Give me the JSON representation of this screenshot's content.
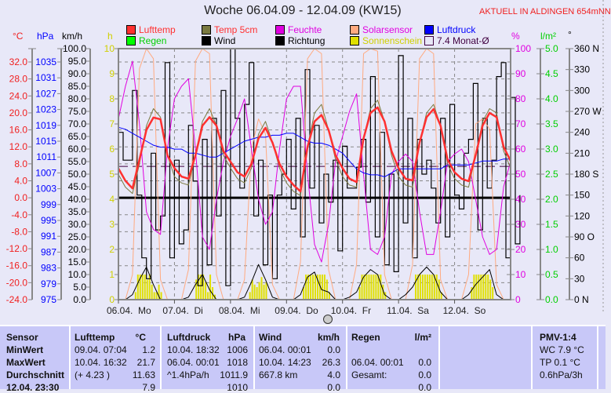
{
  "header": {
    "title": "Woche 06.04.09 - 12.04.09 (KW15)",
    "aktuell": "AKTUELL IN ALDINGEN 654mNN"
  },
  "legend": [
    {
      "label": "Lufttemp",
      "color": "#ff3030",
      "text_color": "#ff3030"
    },
    {
      "label": "Temp 5cm",
      "color": "#7a7a40",
      "text_color": "#ff3030"
    },
    {
      "label": "Feuchte",
      "color": "#e000e0",
      "text_color": "#e000e0"
    },
    {
      "label": "Solarsensor",
      "color": "#ffaa80",
      "text_color": "#e000e0"
    },
    {
      "label": "Luftdruck",
      "color": "#0000ff",
      "text_color": "#0000ff"
    },
    {
      "label": "Regen",
      "color": "#00ff00",
      "text_color": "#00d000"
    },
    {
      "label": "Wind",
      "color": "#000000",
      "text_color": "#000000"
    },
    {
      "label": "Richtung",
      "color": "#000000",
      "text_color": "#000000"
    },
    {
      "label": "Sonnenschein",
      "color": "#e0e000",
      "text_color": "#d0d000"
    },
    {
      "label": "7.4 Monat-Ø",
      "color": "#ffffff",
      "text_color": "#400040"
    }
  ],
  "units": {
    "temp": "°C",
    "hpa": "hPa",
    "kmh": "km/h",
    "h": "h",
    "pct": "%",
    "rain": "l/m²",
    "dir": "°"
  },
  "chart_data": {
    "type": "line",
    "title": "Woche 06.04.09 - 12.04.09 (KW15)",
    "x_unit": "hours since 06.04. 00:00",
    "xlim": [
      0,
      168
    ],
    "x_ticks": [
      "06.04.  Mo",
      "07.04.  Di",
      "08.04.  Mi",
      "09.04.  Do",
      "10.04.  Fr",
      "11.04.  Sa",
      "12.04.  So"
    ],
    "axes": {
      "temp": {
        "range": [
          -24,
          32
        ],
        "ticks": [
          "32.0",
          "28.0",
          "24.0",
          "20.0",
          "16.0",
          "12.0",
          "8.0",
          "4.0",
          "0.0",
          "-4.0",
          "-8.0",
          "-12.0",
          "-16.0",
          "-20.0",
          "-24.0"
        ]
      },
      "hpa": {
        "range": [
          975,
          1035
        ],
        "ticks": [
          "1035",
          "1031",
          "1027",
          "1023",
          "1019",
          "1015",
          "1011",
          "1007",
          "1003",
          "999",
          "995",
          "991",
          "987",
          "983",
          "979",
          "975"
        ]
      },
      "kmh": {
        "range": [
          0,
          100
        ],
        "ticks": [
          "100.0",
          "95.0",
          "90.0",
          "85.0",
          "80.0",
          "75.0",
          "70.0",
          "65.0",
          "60.0",
          "55.0",
          "50.0",
          "45.0",
          "40.0",
          "35.0",
          "30.0",
          "25.0",
          "20.0",
          "15.0",
          "10.0",
          "5.0",
          "0.0"
        ]
      },
      "h": {
        "range": [
          0,
          10
        ],
        "ticks": [
          "10",
          "9",
          "8",
          "7",
          "6",
          "5",
          "4",
          "3",
          "2",
          "1",
          "0"
        ]
      },
      "pct": {
        "range": [
          0,
          100
        ],
        "ticks": [
          "100",
          "90",
          "80",
          "70",
          "60",
          "50",
          "40",
          "30",
          "20",
          "10",
          "0"
        ]
      },
      "rain": {
        "range": [
          0,
          5
        ],
        "ticks": [
          "5.0",
          "4.5",
          "4.0",
          "3.5",
          "3.0",
          "2.5",
          "2.0",
          "1.5",
          "1.0",
          "0.5",
          "0.0"
        ]
      },
      "dir": {
        "range": [
          0,
          360
        ],
        "ticks": [
          "360 N",
          "330",
          "300",
          "270 W",
          "240",
          "210",
          "180 S",
          "150",
          "120",
          "90  O",
          "60",
          "30",
          "0   N"
        ]
      }
    },
    "step_hours": 3,
    "series": [
      {
        "name": "Solarsensor",
        "axis": "pct",
        "color": "#ffaa80",
        "width": 1,
        "values": [
          0,
          0,
          10,
          92,
          100,
          96,
          8,
          0,
          0,
          0,
          12,
          95,
          100,
          98,
          10,
          0,
          0,
          0,
          8,
          60,
          72,
          66,
          6,
          0,
          0,
          0,
          15,
          96,
          100,
          98,
          12,
          0,
          0,
          0,
          14,
          98,
          100,
          99,
          10,
          0,
          0,
          0,
          14,
          96,
          100,
          98,
          8,
          0,
          0,
          0,
          10,
          70,
          72,
          68,
          6,
          0,
          0
        ]
      },
      {
        "name": "Feuchte",
        "axis": "pct",
        "color": "#e000e0",
        "width": 1,
        "values": [
          72,
          85,
          95,
          70,
          35,
          28,
          26,
          60,
          80,
          85,
          88,
          60,
          25,
          20,
          40,
          55,
          65,
          72,
          80,
          60,
          40,
          30,
          35,
          60,
          80,
          85,
          85,
          50,
          22,
          15,
          30,
          55,
          65,
          75,
          82,
          50,
          20,
          18,
          25,
          50,
          55,
          58,
          55,
          35,
          18,
          18,
          35,
          55,
          58,
          60,
          55,
          40,
          25,
          18,
          20,
          45,
          55
        ]
      },
      {
        "name": "Luftdruck",
        "axis": "hpa",
        "color": "#0000ff",
        "width": 1,
        "values": [
          1018.5,
          1018,
          1017,
          1016,
          1015,
          1014,
          1013.5,
          1013.5,
          1013,
          1013,
          1012,
          1012,
          1011.5,
          1011,
          1011,
          1012,
          1013,
          1014,
          1015,
          1015.5,
          1016,
          1016,
          1016.5,
          1016.5,
          1017,
          1017,
          1016,
          1015,
          1014.5,
          1014.5,
          1014,
          1013,
          1012,
          1010,
          1008,
          1007,
          1006.5,
          1006.5,
          1006,
          1007,
          1008,
          1008,
          1008,
          1008,
          1008,
          1008,
          1008,
          1009,
          1009,
          1009,
          1009,
          1009.5,
          1010,
          1010,
          1010,
          1010.5,
          1010.5
        ]
      },
      {
        "name": "Temp 5cm",
        "axis": "temp",
        "color": "#7a7a40",
        "width": 1,
        "values": [
          5.5,
          2.5,
          1.0,
          8,
          17,
          21,
          19,
          10,
          5,
          3.5,
          3,
          10,
          18,
          21,
          17,
          10,
          7,
          4.5,
          3.5,
          7,
          15,
          18,
          13,
          7,
          3.5,
          1.5,
          0.5,
          12,
          20,
          22,
          16,
          9,
          5,
          3,
          2.5,
          14,
          21,
          23,
          18,
          10,
          5,
          3,
          2.5,
          13,
          20,
          22,
          17,
          8,
          4.5,
          3,
          2.5,
          10,
          18,
          21,
          20,
          11,
          7
        ]
      },
      {
        "name": "Lufttemp",
        "axis": "temp",
        "color": "#ff3030",
        "width": 2.5,
        "values": [
          6.9,
          4,
          2.2,
          9,
          16,
          18.9,
          18.5,
          10,
          7,
          5,
          4.5,
          10,
          17,
          19,
          17,
          11,
          8.5,
          6,
          5,
          8,
          14,
          16.5,
          13,
          8,
          5,
          3,
          1.5,
          12,
          18,
          19.5,
          16,
          10,
          7,
          4.5,
          3.7,
          14,
          20,
          21.3,
          18,
          11,
          7,
          4.5,
          4.1,
          13,
          19,
          20.9,
          17,
          9,
          6,
          4.5,
          3.9,
          10,
          17,
          20,
          19,
          12,
          8.7
        ]
      },
      {
        "name": "Wind",
        "axis": "kmh",
        "color": "#000000",
        "width": 1,
        "values": [
          0,
          0,
          2,
          8,
          13,
          6,
          0,
          0,
          0,
          0,
          1,
          6,
          10,
          4,
          0,
          0,
          0,
          0,
          1,
          7,
          14,
          8,
          1,
          0,
          0,
          0,
          2,
          9,
          11,
          4,
          3,
          0,
          0,
          1,
          3,
          9,
          12,
          10,
          2,
          0,
          0,
          2,
          5,
          10,
          13,
          10,
          3,
          0,
          0,
          0,
          2,
          6,
          9,
          12,
          2,
          0,
          0
        ]
      }
    ],
    "direction": {
      "name": "Richtung",
      "axis": "dir",
      "color": "#000000",
      "step_hours": 2,
      "values": [
        240,
        200,
        200,
        300,
        150,
        60,
        30,
        210,
        100,
        120,
        340,
        60,
        200,
        80,
        100,
        250,
        170,
        20,
        230,
        50,
        260,
        120,
        300,
        20,
        360,
        260,
        160,
        280,
        340,
        120,
        200,
        50,
        150,
        30,
        150,
        180,
        230,
        130,
        260,
        90,
        330,
        160,
        250,
        110,
        180,
        140,
        200,
        70,
        220,
        160,
        160,
        190,
        230,
        140,
        320,
        90,
        240,
        50,
        180,
        40,
        350,
        110,
        260,
        60,
        230,
        180,
        200,
        160,
        110,
        260,
        90,
        280,
        150,
        130,
        210,
        230,
        310,
        100,
        260,
        160,
        200,
        320,
        340,
        60,
        290,
        80,
        150
      ]
    },
    "monthly_avg": {
      "name": "7.4 Monat-Ø",
      "axis": "temp",
      "value": 7.4,
      "color": "#400040"
    },
    "zero_line": {
      "axis": "temp",
      "value": 0
    },
    "sunshine": {
      "name": "Sonnenschein",
      "axis": "h",
      "color": "#e0e000",
      "unit": "h per hour",
      "days": [
        {
          "day": 0,
          "start_hour": 7,
          "values": [
            0.3,
            1,
            1,
            1,
            1,
            0.8,
            1,
            0.6,
            0.3,
            0.3,
            0.6,
            0.3
          ]
        },
        {
          "day": 1,
          "start_hour": 9,
          "values": [
            0.8,
            1,
            1,
            1,
            0.7,
            0.3,
            1,
            0.5,
            0.2
          ]
        },
        {
          "day": 2,
          "start_hour": 8,
          "values": [
            0.3,
            0.8,
            0.6,
            0.5,
            0.7,
            0.9,
            0.6,
            0.7
          ]
        },
        {
          "day": 3,
          "start_hour": 7,
          "values": [
            0.5,
            1,
            1,
            1,
            1,
            1,
            1,
            1,
            1,
            1,
            0.8,
            0.3
          ]
        },
        {
          "day": 4,
          "start_hour": 7,
          "values": [
            0.5,
            1,
            1,
            1,
            1,
            1,
            1,
            1,
            1,
            1,
            0.6,
            0.3
          ]
        },
        {
          "day": 5,
          "start_hour": 7,
          "values": [
            1,
            1,
            1,
            1,
            1,
            1,
            1,
            1,
            1,
            1,
            0.8,
            0.3
          ]
        },
        {
          "day": 6,
          "start_hour": 7,
          "values": [
            0.5,
            1,
            1,
            1,
            1,
            1,
            1,
            1,
            0.8,
            0.5
          ]
        }
      ]
    },
    "rain": {
      "name": "Regen",
      "axis": "rain",
      "values": []
    }
  },
  "table": {
    "headers": [
      "Sensor",
      "Lufttemp",
      "°C",
      "Luftdruck",
      "hPa",
      "Wind",
      "km/h",
      "Regen",
      "l/m²",
      "",
      "PMV-1:4"
    ],
    "rows": [
      {
        "label": "MinWert",
        "t_time": "09.04.  07:04",
        "t_val": "1.2",
        "p_time": "10.04.  18:32",
        "p_val": "1006",
        "w_time": "06.04.  00:01",
        "w_val": "0.0",
        "r_time": "",
        "r_val": "",
        "extra": "WC 7.9 °C"
      },
      {
        "label": "MaxWert",
        "t_time": "10.04.  16:32",
        "t_val": "21.7",
        "p_time": "06.04.  00:01",
        "p_val": "1018",
        "w_time": "10.04.  14:23",
        "w_val": "26.3",
        "r_time": "06.04.  00:01",
        "r_val": "0.0",
        "extra": "TP 0.1 °C"
      },
      {
        "label": "Durchschnitt",
        "t_time": "(+ 4.23 )",
        "t_val": "11.63",
        "p_time": "^1.4hPa/h",
        "p_val": "1011.9",
        "w_time": "667.8 km",
        "w_val": "4.0",
        "r_time": "Gesamt:",
        "r_val": "0.0",
        "extra": "0.6hPa/3h"
      },
      {
        "label": "12.04. 23:30",
        "t_time": "",
        "t_val": "7.9",
        "p_time": "",
        "p_val": "1010",
        "w_time": "",
        "w_val": "0.0",
        "r_time": "",
        "r_val": "0.0",
        "extra": ""
      }
    ]
  }
}
